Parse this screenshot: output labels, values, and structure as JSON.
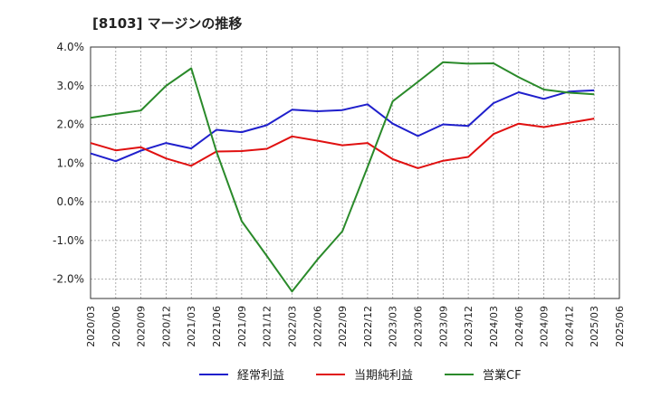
{
  "title": "[8103]  マージンの推移",
  "chart_data": {
    "type": "line",
    "title": "[8103]  マージンの推移",
    "x": [
      "2020/03",
      "2020/06",
      "2020/09",
      "2020/12",
      "2021/03",
      "2021/06",
      "2021/09",
      "2021/12",
      "2022/03",
      "2022/06",
      "2022/09",
      "2022/12",
      "2023/03",
      "2023/06",
      "2023/09",
      "2023/12",
      "2024/03",
      "2024/06",
      "2024/09",
      "2024/12",
      "2025/03",
      "2025/06"
    ],
    "ylim": [
      -2.5,
      4.0
    ],
    "yticks": [
      4.0,
      3.0,
      2.0,
      1.0,
      0.0,
      -1.0,
      -2.0
    ],
    "ytick_labels": [
      "4.0%",
      "3.0%",
      "2.0%",
      "1.0%",
      "0.0%",
      "-1.0%",
      "-2.0%"
    ],
    "grid": true,
    "legend_position": "bottom",
    "series": [
      {
        "name": "経常利益",
        "color": "#1f1fcc",
        "values": [
          1.25,
          1.05,
          1.32,
          1.52,
          1.38,
          1.86,
          1.8,
          1.98,
          2.38,
          2.34,
          2.37,
          2.52,
          2.02,
          1.7,
          2.0,
          1.96,
          2.55,
          2.83,
          2.66,
          2.85,
          2.88,
          null
        ]
      },
      {
        "name": "当期純利益",
        "color": "#e01010",
        "values": [
          1.52,
          1.33,
          1.41,
          1.12,
          0.93,
          1.3,
          1.31,
          1.37,
          1.69,
          1.58,
          1.46,
          1.52,
          1.1,
          0.87,
          1.06,
          1.16,
          1.75,
          2.02,
          1.93,
          2.04,
          2.15,
          null
        ]
      },
      {
        "name": "営業CF",
        "color": "#2a8a2a",
        "values": [
          2.17,
          2.27,
          2.36,
          3.0,
          3.45,
          1.3,
          -0.5,
          -1.4,
          -2.32,
          -1.5,
          -0.76,
          0.9,
          2.6,
          3.1,
          3.61,
          3.57,
          3.58,
          3.22,
          2.9,
          2.82,
          2.78,
          null
        ]
      }
    ]
  }
}
